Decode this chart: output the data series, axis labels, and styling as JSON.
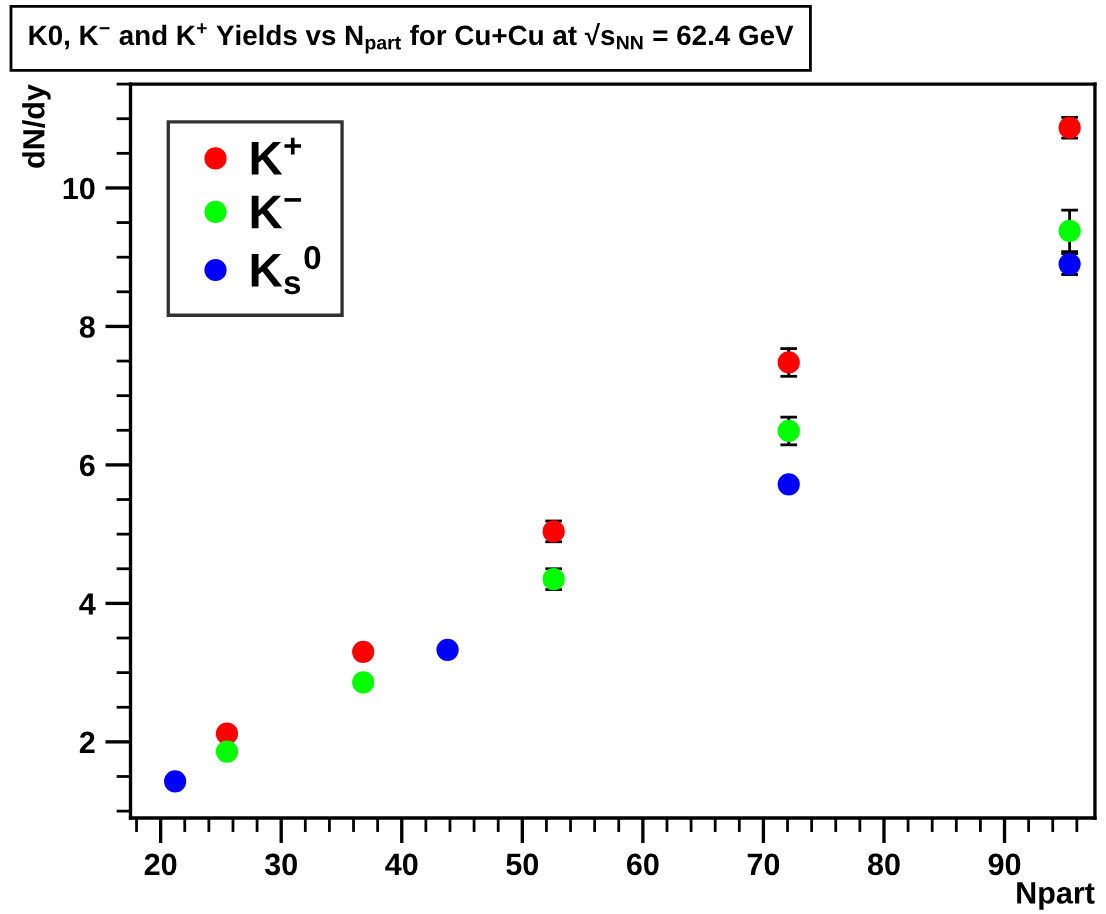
{
  "chart_data": {
    "type": "scatter",
    "title": "K0, K$^{−}$ and K$^{+}$ Yields vs N$_{part}$ for Cu+Cu at √s$_{NN}$ = 62.4 GeV",
    "xlabel": "Npart",
    "ylabel": "dN/dy",
    "xlim": [
      17.5,
      97.5
    ],
    "ylim": [
      0.9,
      11.5
    ],
    "xticks": [
      20,
      30,
      40,
      50,
      60,
      70,
      80,
      90
    ],
    "yticks": [
      2,
      4,
      6,
      8,
      10
    ],
    "marker": "circle",
    "grid": false,
    "legend": "top left",
    "series": [
      {
        "name": "K$^{+}$",
        "color": "#ff0000",
        "x": [
          25.5,
          36.8,
          52.6,
          72.1,
          95.4
        ],
        "values": [
          2.12,
          3.3,
          5.04,
          7.48,
          10.87
        ],
        "errors": [
          null,
          null,
          0.15,
          0.2,
          0.15
        ]
      },
      {
        "name": "K$^{−}$",
        "color": "#00ff00",
        "x": [
          25.5,
          36.8,
          52.6,
          72.1,
          95.4
        ],
        "values": [
          1.86,
          2.86,
          4.35,
          6.49,
          9.38
        ],
        "errors": [
          null,
          null,
          0.15,
          0.2,
          0.3
        ]
      },
      {
        "name": "K$_{s}$$^{0}$",
        "color": "#0000ff",
        "x": [
          21.2,
          43.8,
          72.1,
          95.4
        ],
        "values": [
          1.43,
          3.33,
          5.72,
          8.9
        ],
        "errors": [
          null,
          null,
          null,
          0.15
        ]
      }
    ]
  }
}
